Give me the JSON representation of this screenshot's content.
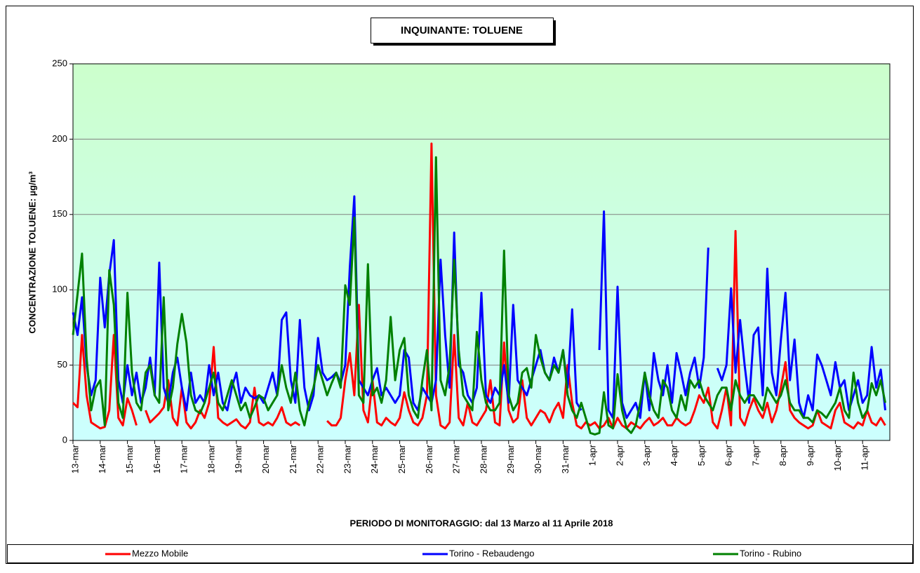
{
  "chart_data": {
    "type": "line",
    "title": "INQUINANTE: TOLUENE",
    "y_label": "CONCENTRAZIONE TOLUENE:  µg/m³",
    "x_label": "PERIODO DI MONITORAGGIO: dal 13 Marzo al 11 Aprile 2018",
    "categories": [
      "13-mar",
      null,
      null,
      null,
      null,
      null,
      "14-mar",
      null,
      null,
      null,
      null,
      null,
      "15-mar",
      null,
      null,
      null,
      null,
      null,
      "16-mar",
      null,
      null,
      null,
      null,
      null,
      "17-mar",
      null,
      null,
      null,
      null,
      null,
      "18-mar",
      null,
      null,
      null,
      null,
      null,
      "19-mar",
      null,
      null,
      null,
      null,
      null,
      "20-mar",
      null,
      null,
      null,
      null,
      null,
      "21-mar",
      null,
      null,
      null,
      null,
      null,
      "22-mar",
      null,
      null,
      null,
      null,
      null,
      "23-mar",
      null,
      null,
      null,
      null,
      null,
      "24-mar",
      null,
      null,
      null,
      null,
      null,
      "25-mar",
      null,
      null,
      null,
      null,
      null,
      "26-mar",
      null,
      null,
      null,
      null,
      null,
      "27-mar",
      null,
      null,
      null,
      null,
      null,
      "28-mar",
      null,
      null,
      null,
      null,
      null,
      "29-mar",
      null,
      null,
      null,
      null,
      null,
      "30-mar",
      null,
      null,
      null,
      null,
      null,
      "31-mar",
      null,
      null,
      null,
      null,
      null,
      "1-apr",
      null,
      null,
      null,
      null,
      null,
      "2-apr",
      null,
      null,
      null,
      null,
      null,
      "3-apr",
      null,
      null,
      null,
      null,
      null,
      "4-apr",
      null,
      null,
      null,
      null,
      null,
      "5-apr",
      null,
      null,
      null,
      null,
      null,
      "6-apr",
      null,
      null,
      null,
      null,
      null,
      "7-apr",
      null,
      null,
      null,
      null,
      null,
      "8-apr",
      null,
      null,
      null,
      null,
      null,
      "9-apr",
      null,
      null,
      null,
      null,
      null,
      "10-apr",
      null,
      null,
      null,
      null,
      null,
      "11-apr",
      null,
      null,
      null,
      null,
      null
    ],
    "series": [
      {
        "name": "Mezzo Mobile",
        "color": "#ff0000",
        "values": [
          25,
          22,
          70,
          30,
          12,
          10,
          8,
          9,
          20,
          70,
          15,
          10,
          28,
          20,
          10,
          null,
          20,
          12,
          15,
          18,
          22,
          40,
          15,
          10,
          35,
          12,
          8,
          12,
          20,
          15,
          25,
          62,
          15,
          12,
          10,
          12,
          14,
          10,
          8,
          12,
          35,
          12,
          10,
          12,
          10,
          15,
          22,
          12,
          10,
          12,
          10,
          null,
          null,
          null,
          null,
          null,
          13,
          10,
          10,
          15,
          40,
          58,
          30,
          90,
          20,
          12,
          40,
          12,
          10,
          15,
          12,
          10,
          15,
          32,
          20,
          12,
          10,
          15,
          30,
          197,
          30,
          10,
          8,
          12,
          70,
          15,
          10,
          25,
          12,
          10,
          15,
          20,
          40,
          12,
          10,
          65,
          20,
          12,
          15,
          40,
          15,
          10,
          15,
          20,
          18,
          12,
          20,
          25,
          15,
          50,
          25,
          10,
          8,
          12,
          10,
          12,
          8,
          10,
          15,
          8,
          15,
          10,
          8,
          12,
          10,
          8,
          12,
          15,
          10,
          12,
          15,
          10,
          10,
          15,
          12,
          10,
          12,
          20,
          30,
          25,
          35,
          12,
          8,
          20,
          35,
          10,
          139,
          15,
          10,
          20,
          28,
          20,
          15,
          25,
          12,
          20,
          35,
          52,
          20,
          15,
          12,
          10,
          8,
          10,
          20,
          12,
          10,
          8,
          20,
          25,
          12,
          10,
          8,
          12,
          10,
          20,
          12,
          10,
          15,
          10
        ]
      },
      {
        "name": "Torino - Rebaudengo",
        "color": "#0000ff",
        "values": [
          85,
          70,
          95,
          50,
          30,
          40,
          108,
          75,
          110,
          133,
          40,
          25,
          50,
          30,
          45,
          25,
          35,
          55,
          30,
          118,
          35,
          25,
          45,
          55,
          35,
          20,
          45,
          25,
          30,
          25,
          50,
          30,
          45,
          25,
          20,
          35,
          45,
          25,
          35,
          30,
          28,
          30,
          25,
          35,
          45,
          30,
          80,
          85,
          40,
          25,
          80,
          35,
          20,
          30,
          68,
          45,
          40,
          42,
          45,
          38,
          50,
          115,
          162,
          40,
          35,
          30,
          40,
          48,
          30,
          35,
          30,
          25,
          30,
          60,
          55,
          25,
          20,
          35,
          30,
          25,
          40,
          120,
          70,
          35,
          138,
          50,
          45,
          30,
          25,
          35,
          98,
          30,
          25,
          35,
          30,
          50,
          25,
          90,
          40,
          35,
          30,
          40,
          50,
          60,
          45,
          40,
          55,
          45,
          60,
          35,
          87,
          25,
          20,
          null,
          null,
          null,
          60,
          152,
          20,
          15,
          102,
          25,
          15,
          20,
          25,
          15,
          45,
          20,
          58,
          40,
          30,
          50,
          25,
          58,
          45,
          30,
          45,
          55,
          35,
          55,
          128,
          null,
          48,
          40,
          50,
          101,
          45,
          80,
          50,
          25,
          70,
          75,
          30,
          114,
          45,
          30,
          67,
          98,
          40,
          67,
          25,
          15,
          30,
          20,
          57,
          50,
          40,
          30,
          52,
          35,
          40,
          20,
          30,
          40,
          25,
          30,
          62,
          35,
          47,
          20
        ]
      },
      {
        "name": "Torino - Rubino",
        "color": "#008000",
        "values": [
          70,
          97,
          124,
          55,
          20,
          35,
          40,
          10,
          113,
          90,
          25,
          15,
          98,
          45,
          25,
          20,
          45,
          50,
          30,
          25,
          95,
          20,
          35,
          64,
          84,
          65,
          30,
          20,
          18,
          25,
          35,
          45,
          25,
          20,
          30,
          40,
          30,
          20,
          25,
          15,
          22,
          30,
          28,
          20,
          25,
          30,
          50,
          35,
          25,
          45,
          20,
          10,
          25,
          35,
          50,
          40,
          30,
          38,
          45,
          35,
          103,
          90,
          148,
          30,
          25,
          117,
          30,
          35,
          25,
          40,
          82,
          40,
          60,
          68,
          30,
          20,
          15,
          40,
          60,
          20,
          188,
          40,
          30,
          50,
          120,
          60,
          30,
          25,
          20,
          72,
          40,
          25,
          20,
          20,
          25,
          126,
          30,
          20,
          25,
          45,
          48,
          35,
          70,
          55,
          45,
          40,
          50,
          45,
          60,
          30,
          20,
          15,
          25,
          15,
          5,
          4,
          5,
          32,
          10,
          8,
          44,
          20,
          8,
          5,
          10,
          25,
          45,
          30,
          20,
          15,
          40,
          35,
          20,
          15,
          30,
          20,
          40,
          35,
          40,
          30,
          25,
          20,
          30,
          35,
          35,
          20,
          40,
          30,
          25,
          30,
          30,
          25,
          20,
          35,
          30,
          25,
          30,
          40,
          25,
          20,
          20,
          15,
          15,
          12,
          20,
          18,
          15,
          20,
          25,
          35,
          20,
          15,
          45,
          25,
          15,
          20,
          38,
          30,
          40,
          25
        ]
      }
    ],
    "ylim": [
      0,
      250
    ],
    "yticks": [
      0,
      50,
      100,
      150,
      200,
      250
    ],
    "grid": true,
    "legend": "bottom"
  }
}
